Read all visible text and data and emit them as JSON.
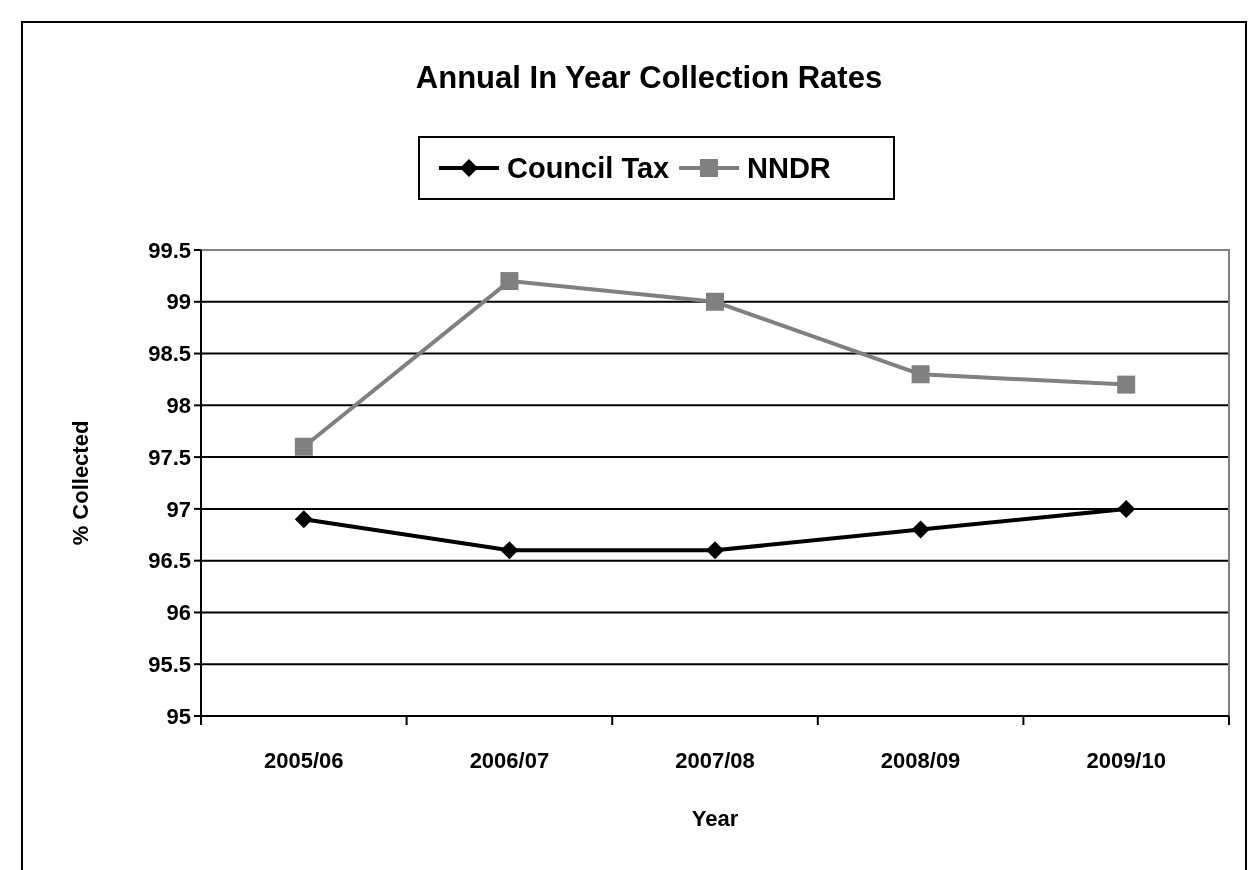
{
  "chart_data": {
    "type": "line",
    "title": "Annual In Year Collection Rates",
    "xlabel": "Year",
    "ylabel": "% Collected",
    "categories": [
      "2005/06",
      "2006/07",
      "2007/08",
      "2008/09",
      "2009/10"
    ],
    "series": [
      {
        "name": "Council Tax",
        "color": "#000000",
        "marker": "diamond",
        "values": [
          96.9,
          96.6,
          96.6,
          96.8,
          97.0
        ]
      },
      {
        "name": "NNDR",
        "color": "#808080",
        "marker": "square",
        "values": [
          97.6,
          99.2,
          99.0,
          98.3,
          98.2
        ]
      }
    ],
    "ylim": [
      95,
      99.5
    ],
    "yticks": [
      {
        "value": 95,
        "label": "95"
      },
      {
        "value": 95.5,
        "label": "95.5"
      },
      {
        "value": 96,
        "label": "96"
      },
      {
        "value": 96.5,
        "label": "96.5"
      },
      {
        "value": 97,
        "label": "97"
      },
      {
        "value": 97.5,
        "label": "97.5"
      },
      {
        "value": 98,
        "label": "98"
      },
      {
        "value": 98.5,
        "label": "98.5"
      },
      {
        "value": 99,
        "label": "99"
      },
      {
        "value": 99.5,
        "label": "99.5"
      }
    ],
    "grid": "y",
    "legend": "top",
    "line_style": "solid"
  }
}
